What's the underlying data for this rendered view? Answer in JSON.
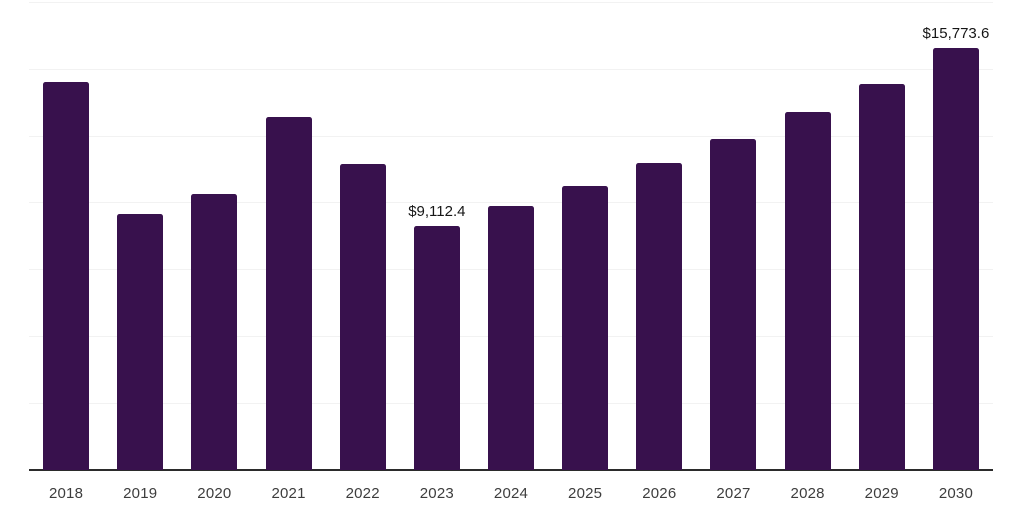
{
  "chart_data": {
    "type": "bar",
    "title": "",
    "xlabel": "",
    "ylabel": "",
    "categories": [
      "2018",
      "2019",
      "2020",
      "2021",
      "2022",
      "2023",
      "2024",
      "2025",
      "2026",
      "2027",
      "2028",
      "2029",
      "2030"
    ],
    "values": [
      14520,
      9555,
      10300,
      13210,
      11430,
      9112.4,
      9860,
      10615,
      11465,
      12375,
      13385,
      14435,
      15773.6
    ],
    "data_labels": [
      "",
      "",
      "",
      "",
      "",
      "$9,112.4",
      "",
      "",
      "",
      "",
      "",
      "",
      "$15,773.6"
    ],
    "ylim": [
      0,
      17500
    ],
    "grid_step": 2500,
    "grid": "horizontal",
    "legend": "none",
    "colors": {
      "bar": "#38114d",
      "gridline": "#f2f2f2",
      "axis": "#2b2b2b",
      "tick_label": "#3d3d3d",
      "value_label": "#161616",
      "background": "#ffffff"
    }
  }
}
